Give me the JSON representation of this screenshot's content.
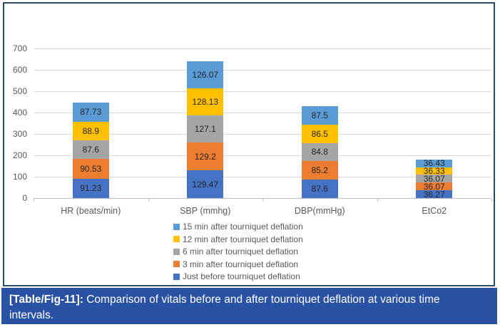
{
  "caption": {
    "label": "[Table/Fig-11]:",
    "text": "Comparison of vitals before and after tourniquet deflation at various time intervals."
  },
  "chart_data": {
    "type": "bar",
    "stacked": true,
    "title": "",
    "xlabel": "",
    "ylabel": "",
    "ylim": [
      0,
      700
    ],
    "y_ticks": [
      0,
      100,
      200,
      300,
      400,
      500,
      600,
      700
    ],
    "grid": true,
    "legend_position": "bottom-center",
    "categories": [
      "HR (beats/min)",
      "SBP (mmhg)",
      "DBP(mmHg)",
      "EtCo2"
    ],
    "series": [
      {
        "name": "Just before tourniquet deflation",
        "color": "#4472C4",
        "values": [
          91.23,
          129.47,
          87.6,
          36.27
        ]
      },
      {
        "name": "3 min after tourniquet deflation",
        "color": "#ED7D31",
        "values": [
          90.53,
          129.2,
          85.2,
          36.07
        ]
      },
      {
        "name": "6 min after tourniquet deflation",
        "color": "#A5A5A5",
        "values": [
          87.6,
          127.1,
          84.8,
          36.07
        ]
      },
      {
        "name": "12 min after tourniquet deflation",
        "color": "#FFC000",
        "values": [
          88.9,
          128.13,
          86.5,
          36.33
        ]
      },
      {
        "name": "15 min after tourniquet deflation",
        "color": "#5B9BD5",
        "values": [
          87.73,
          126.07,
          87.5,
          36.43
        ]
      }
    ],
    "legend": [
      {
        "label": "15 min after tourniquet deflation",
        "color": "#5B9BD5"
      },
      {
        "label": "12 min after tourniquet deflation",
        "color": "#FFC000"
      },
      {
        "label": "6 min after tourniquet deflation",
        "color": "#A5A5A5"
      },
      {
        "label": "3 min after tourniquet deflation",
        "color": "#ED7D31"
      },
      {
        "label": "Just before tourniquet deflation",
        "color": "#4472C4"
      }
    ]
  },
  "colors": {
    "caption_bg": "#2A52A4",
    "frame_border": "#2C4A68",
    "gridline": "#D9D9D9",
    "axis_line": "#BFBFBF"
  }
}
